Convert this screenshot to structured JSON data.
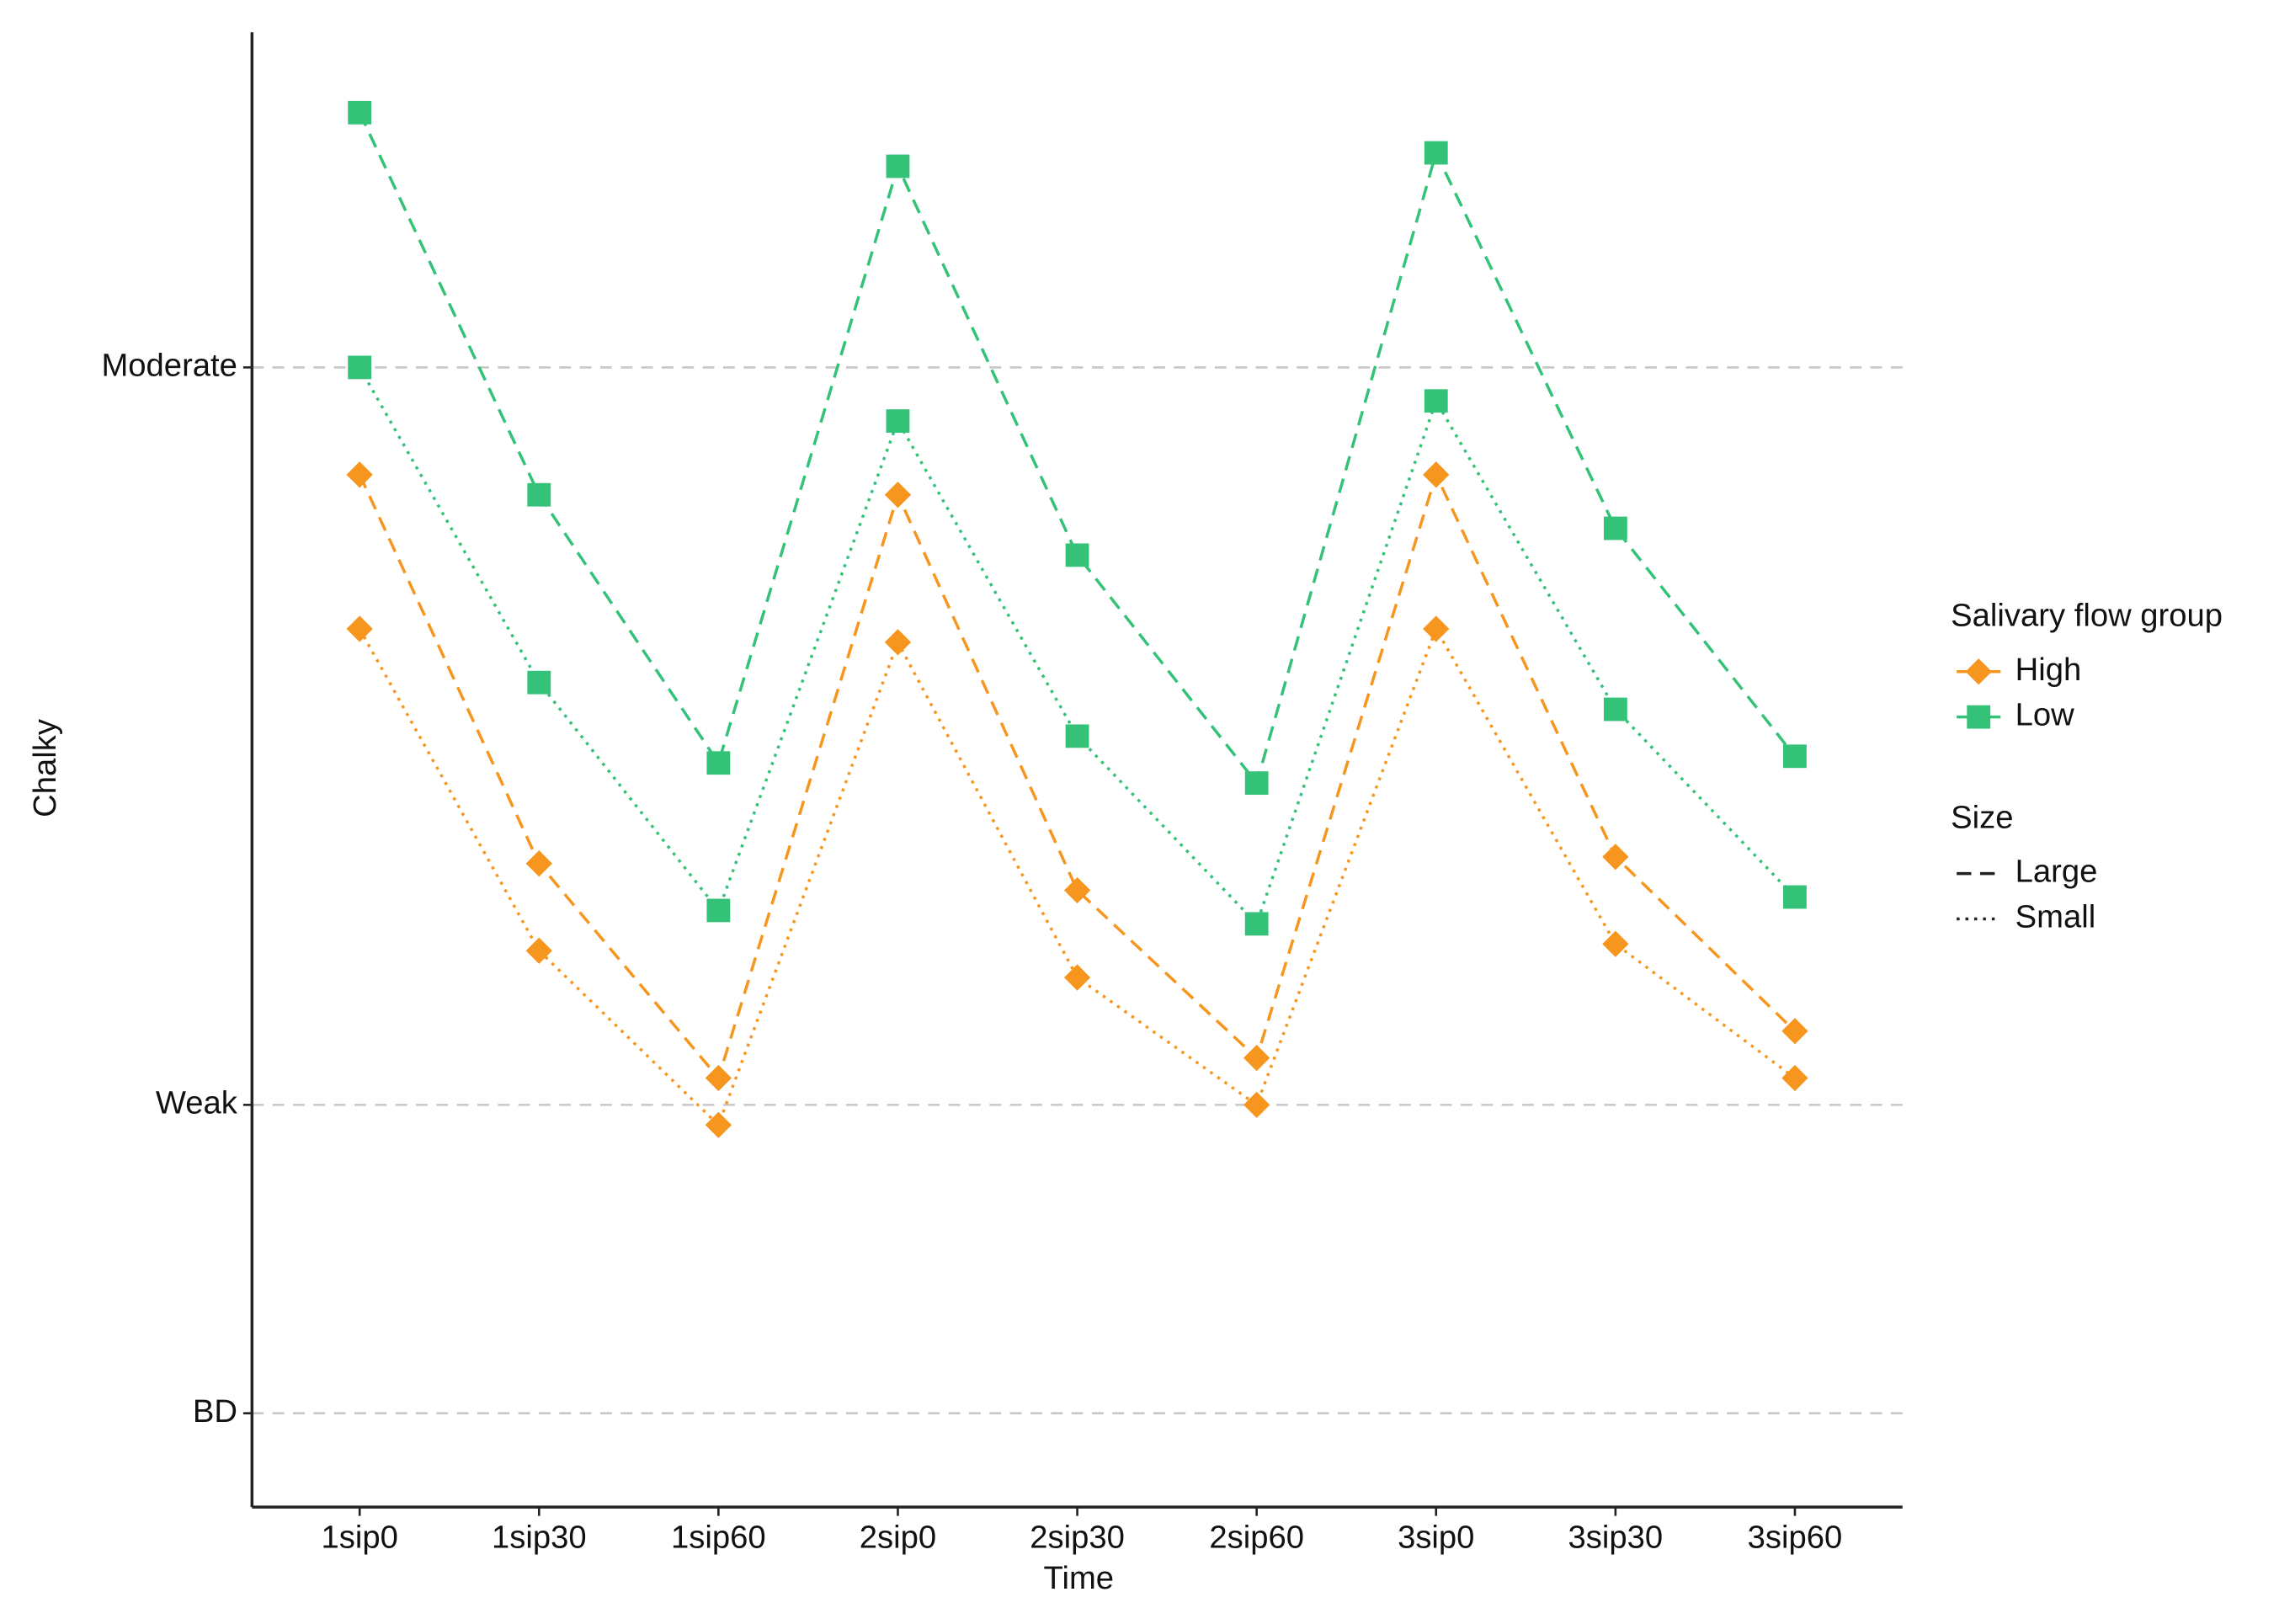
{
  "chart_data": {
    "type": "line",
    "x_label": "Time",
    "y_label": "Chalky",
    "categories": [
      "1sip0",
      "1sip30",
      "1sip60",
      "2sip0",
      "2sip30",
      "2sip60",
      "3sip0",
      "3sip30",
      "3sip60"
    ],
    "ylim": [
      0,
      22
    ],
    "yticks": [
      {
        "value": 1.4,
        "label": "BD"
      },
      {
        "value": 6,
        "label": "Weak"
      },
      {
        "value": 17,
        "label": "Moderate"
      }
    ],
    "grid": true,
    "legend_position": "right",
    "group_title": "Salivary flow group",
    "groups": [
      {
        "name": "High",
        "color": "#f7961e",
        "marker": "diamond"
      },
      {
        "name": "Low",
        "color": "#34c278",
        "marker": "square"
      }
    ],
    "size_title": "Size",
    "sizes": [
      {
        "name": "Large",
        "dash": "dashed"
      },
      {
        "name": "Small",
        "dash": "dotted"
      }
    ],
    "series": [
      {
        "group": 1,
        "size": 0,
        "values": [
          20.8,
          15.1,
          11.1,
          20.0,
          14.2,
          10.8,
          20.2,
          14.6,
          11.2
        ]
      },
      {
        "group": 1,
        "size": 1,
        "values": [
          17.0,
          12.3,
          8.9,
          16.2,
          11.5,
          8.7,
          16.5,
          11.9,
          9.1
        ]
      },
      {
        "group": 0,
        "size": 0,
        "values": [
          15.4,
          9.6,
          6.4,
          15.1,
          9.2,
          6.7,
          15.4,
          9.7,
          7.1
        ]
      },
      {
        "group": 0,
        "size": 1,
        "values": [
          13.1,
          8.3,
          5.7,
          12.9,
          7.9,
          6.0,
          13.1,
          8.4,
          6.4
        ]
      }
    ]
  }
}
